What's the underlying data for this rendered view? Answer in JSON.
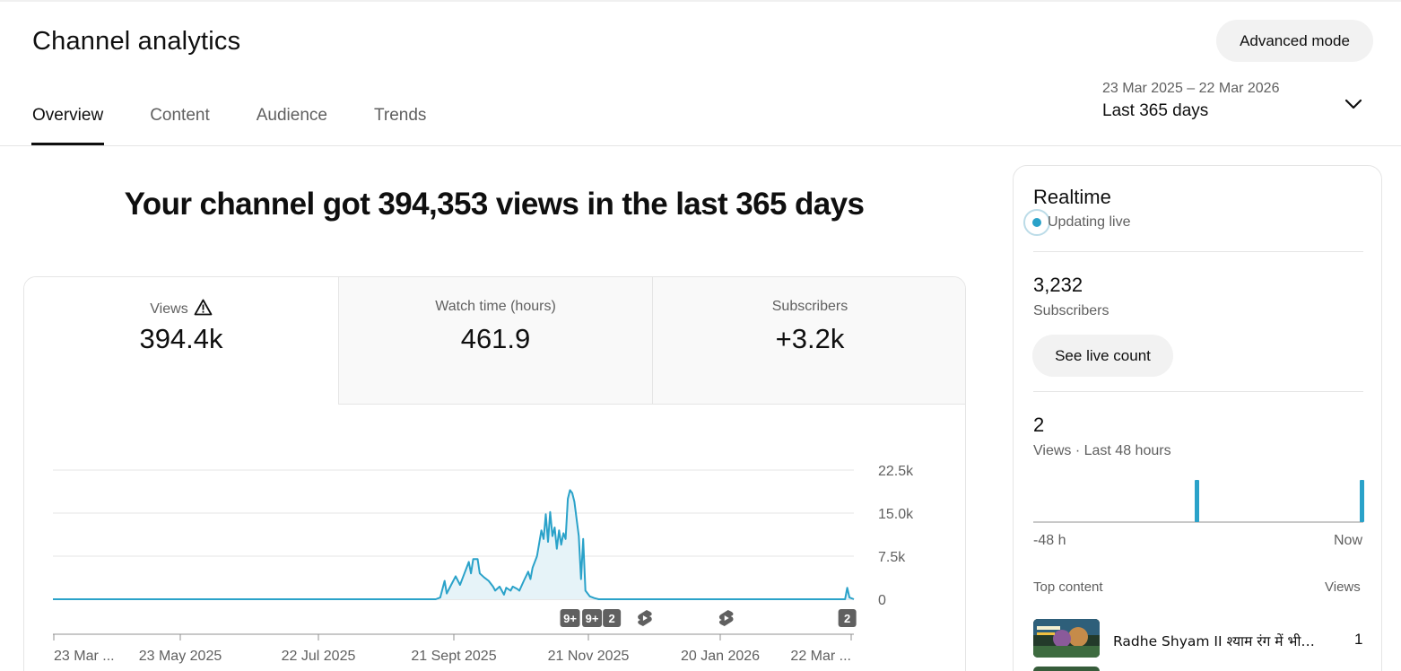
{
  "header": {
    "title": "Channel analytics",
    "advanced_mode_label": "Advanced mode",
    "tabs": [
      {
        "label": "Overview",
        "active": true
      },
      {
        "label": "Content",
        "active": false
      },
      {
        "label": "Audience",
        "active": false
      },
      {
        "label": "Trends",
        "active": false
      }
    ],
    "date_range": {
      "dates": "23 Mar 2025 – 22 Mar 2026",
      "label": "Last 365 days"
    }
  },
  "headline": "Your channel got 394,353 views in the last 365 days",
  "metrics": [
    {
      "label": "Views",
      "value": "394.4k",
      "warning": true
    },
    {
      "label": "Watch time (hours)",
      "value": "461.9"
    },
    {
      "label": "Subscribers",
      "value": "+3.2k"
    }
  ],
  "chart_data": {
    "type": "area",
    "title": "",
    "metric": "Views",
    "ylim": [
      0,
      22500
    ],
    "y_ticks": [
      0,
      7500,
      15000,
      22500
    ],
    "y_tick_labels": [
      "0",
      "7.5k",
      "15.0k",
      "22.5k"
    ],
    "x_tick_labels": [
      "23 Mar ...",
      "23 May 2025",
      "22 Jul 2025",
      "21 Sept 2025",
      "21 Nov 2025",
      "20 Jan 2026",
      "22 Mar ..."
    ],
    "grid": true,
    "color": "#2aa2c9",
    "fill_color": "#e6f3f8",
    "x_start": "2025-03-23",
    "x_end": "2026-03-22",
    "points": [
      [
        "2025-03-23",
        0
      ],
      [
        "2025-09-13",
        0
      ],
      [
        "2025-09-15",
        300
      ],
      [
        "2025-09-17",
        3200
      ],
      [
        "2025-09-18",
        1000
      ],
      [
        "2025-09-20",
        2500
      ],
      [
        "2025-09-22",
        4000
      ],
      [
        "2025-09-24",
        2500
      ],
      [
        "2025-09-26",
        4500
      ],
      [
        "2025-09-28",
        6500
      ],
      [
        "2025-09-29",
        4500
      ],
      [
        "2025-09-30",
        7000
      ],
      [
        "2025-10-02",
        7000
      ],
      [
        "2025-10-03",
        4500
      ],
      [
        "2025-10-05",
        3800
      ],
      [
        "2025-10-07",
        3200
      ],
      [
        "2025-10-09",
        2200
      ],
      [
        "2025-10-10",
        1500
      ],
      [
        "2025-10-12",
        2200
      ],
      [
        "2025-10-14",
        800
      ],
      [
        "2025-10-15",
        2000
      ],
      [
        "2025-10-17",
        1500
      ],
      [
        "2025-10-18",
        2200
      ],
      [
        "2025-10-20",
        1800
      ],
      [
        "2025-10-21",
        1500
      ],
      [
        "2025-10-23",
        3200
      ],
      [
        "2025-10-25",
        4800
      ],
      [
        "2025-10-26",
        3500
      ],
      [
        "2025-10-27",
        5500
      ],
      [
        "2025-10-29",
        7500
      ],
      [
        "2025-10-31",
        12000
      ],
      [
        "2025-11-01",
        10500
      ],
      [
        "2025-11-02",
        14800
      ],
      [
        "2025-11-03",
        10000
      ],
      [
        "2025-11-04",
        15200
      ],
      [
        "2025-11-05",
        11000
      ],
      [
        "2025-11-06",
        12500
      ],
      [
        "2025-11-07",
        8800
      ],
      [
        "2025-11-08",
        12000
      ],
      [
        "2025-11-09",
        9500
      ],
      [
        "2025-11-10",
        11500
      ],
      [
        "2025-11-11",
        10500
      ],
      [
        "2025-11-12",
        17500
      ],
      [
        "2025-11-13",
        19000
      ],
      [
        "2025-11-14",
        18500
      ],
      [
        "2025-11-15",
        17000
      ],
      [
        "2025-11-17",
        11000
      ],
      [
        "2025-11-18",
        3500
      ],
      [
        "2025-11-19",
        10500
      ],
      [
        "2025-11-20",
        1500
      ],
      [
        "2025-11-22",
        500
      ],
      [
        "2025-11-24",
        200
      ],
      [
        "2025-11-26",
        0
      ],
      [
        "2026-03-18",
        0
      ],
      [
        "2026-03-19",
        2000
      ],
      [
        "2026-03-20",
        300
      ],
      [
        "2026-03-22",
        0
      ]
    ],
    "markers": [
      {
        "label": "9+",
        "date": "2025-11-13"
      },
      {
        "label": "9+",
        "date": "2025-11-23"
      },
      {
        "label": "2",
        "date": "2025-12-02"
      },
      {
        "label": "shorts-icon",
        "date": "2025-12-17"
      },
      {
        "label": "shorts-icon",
        "date": "2026-01-23"
      },
      {
        "label": "2",
        "date": "2026-03-19"
      }
    ]
  },
  "realtime": {
    "title": "Realtime",
    "status": "Updating live",
    "subscribers_count": "3,232",
    "subscribers_label": "Subscribers",
    "see_live_count_label": "See live count",
    "views_count": "2",
    "views_label": "Views · Last 48 hours",
    "axis_start": "-48 h",
    "axis_end": "Now",
    "bars": [
      1,
      1
    ],
    "bar_hours": [
      -24,
      0
    ],
    "top_content_label": "Top content",
    "top_views_label": "Views",
    "top_items": [
      {
        "title": "Radhe Shyam II श्याम रंग में भीगी राधा रानी",
        "views": "1"
      }
    ]
  }
}
